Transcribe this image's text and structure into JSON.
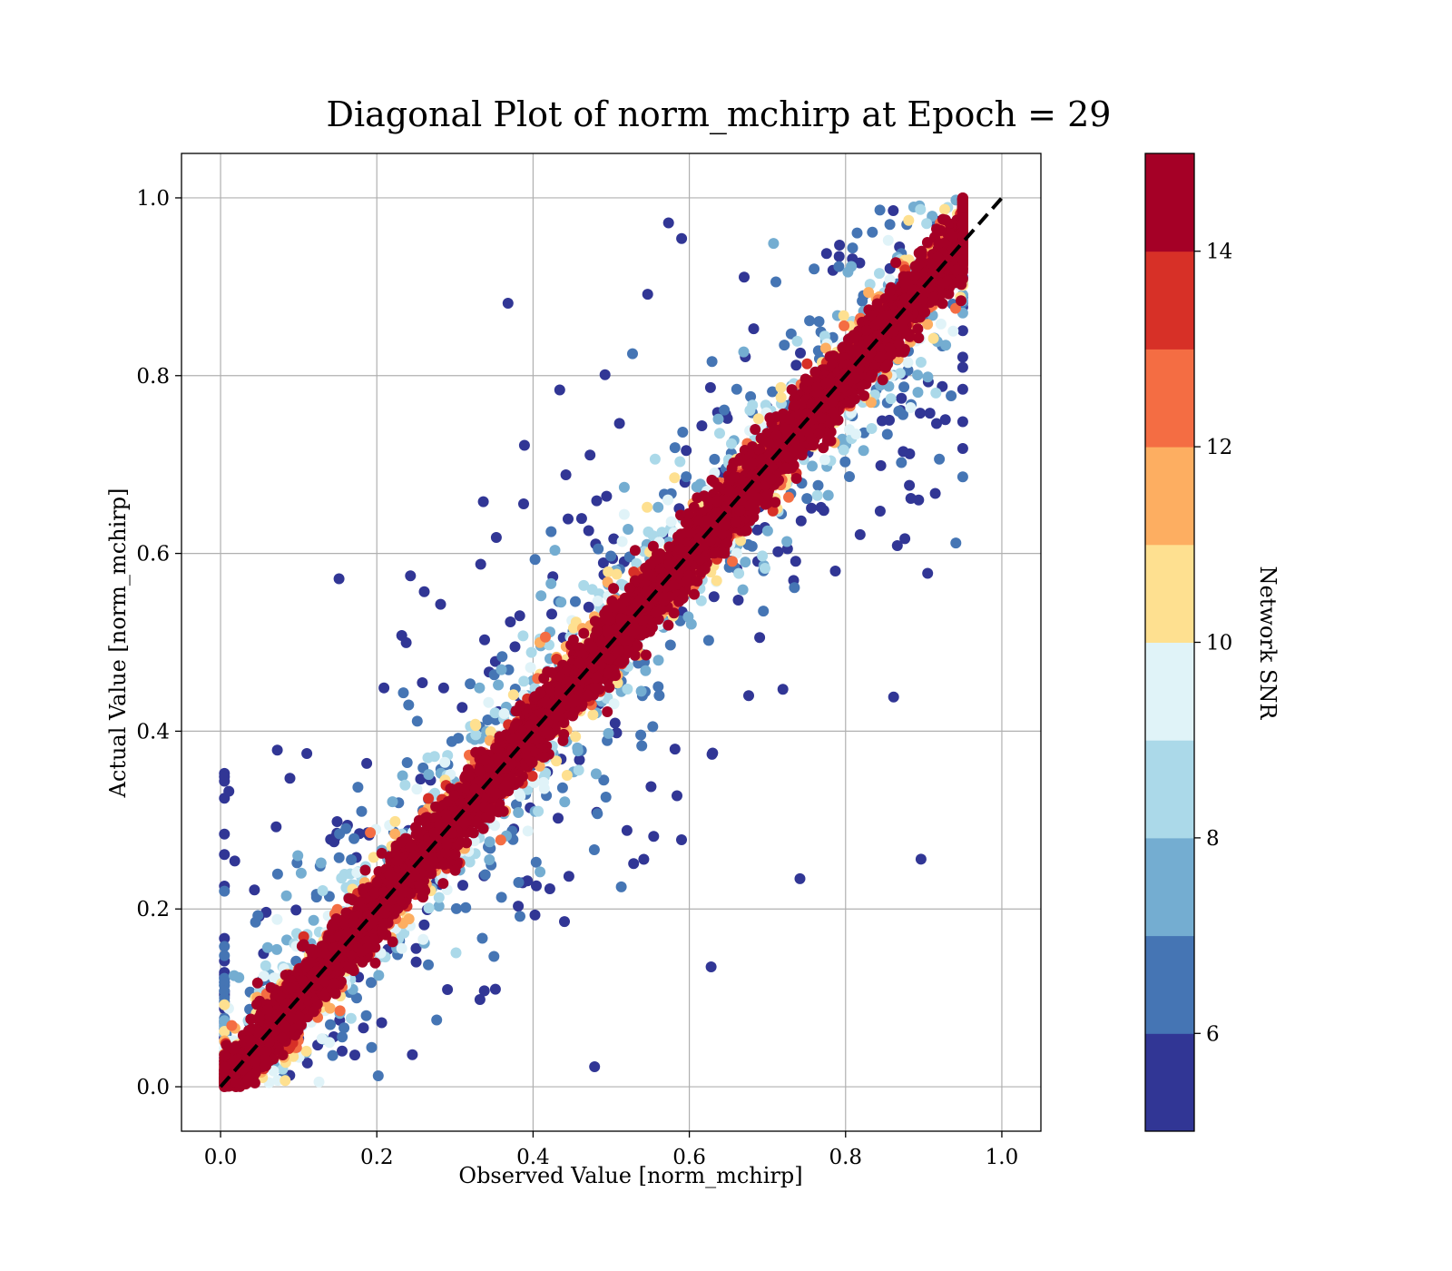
{
  "chart_data": {
    "type": "scatter",
    "title": "Diagonal Plot of norm_mchirp at Epoch = 29",
    "xlabel": "Observed Value [norm_mchirp]",
    "ylabel": "Actual Value [norm_mchirp]",
    "xlim": [
      -0.05,
      1.05
    ],
    "ylim": [
      -0.05,
      1.05
    ],
    "x_ticks": [
      "0.0",
      "0.2",
      "0.4",
      "0.6",
      "0.8",
      "1.0"
    ],
    "y_ticks": [
      "0.0",
      "0.2",
      "0.4",
      "0.6",
      "0.8",
      "1.0"
    ],
    "grid": true,
    "reference_line": {
      "x": [
        0.0,
        1.0
      ],
      "y": [
        0.0,
        1.0
      ],
      "style": "dashed",
      "color": "#000000"
    },
    "observed_range": [
      0.0,
      0.95
    ],
    "actual_range": [
      0.0,
      1.0
    ],
    "colorbar": {
      "label": "Network SNR",
      "range": [
        5,
        15
      ],
      "ticks": [
        "6",
        "8",
        "10",
        "12",
        "14"
      ],
      "levels": [
        5,
        6,
        7,
        8,
        9,
        10,
        11,
        12,
        13,
        14,
        15
      ],
      "colors": [
        "#313695",
        "#4575b4",
        "#74add1",
        "#abd9e9",
        "#e0f3f8",
        "#fee090",
        "#fdae61",
        "#f46d43",
        "#d73027",
        "#a50026"
      ]
    },
    "description_of_points": "Dense scatter of predictions vs. truth; high-SNR points (dark red) hug the diagonal y = x, lower-SNR points (blue) spread widely above and below the diagonal."
  }
}
